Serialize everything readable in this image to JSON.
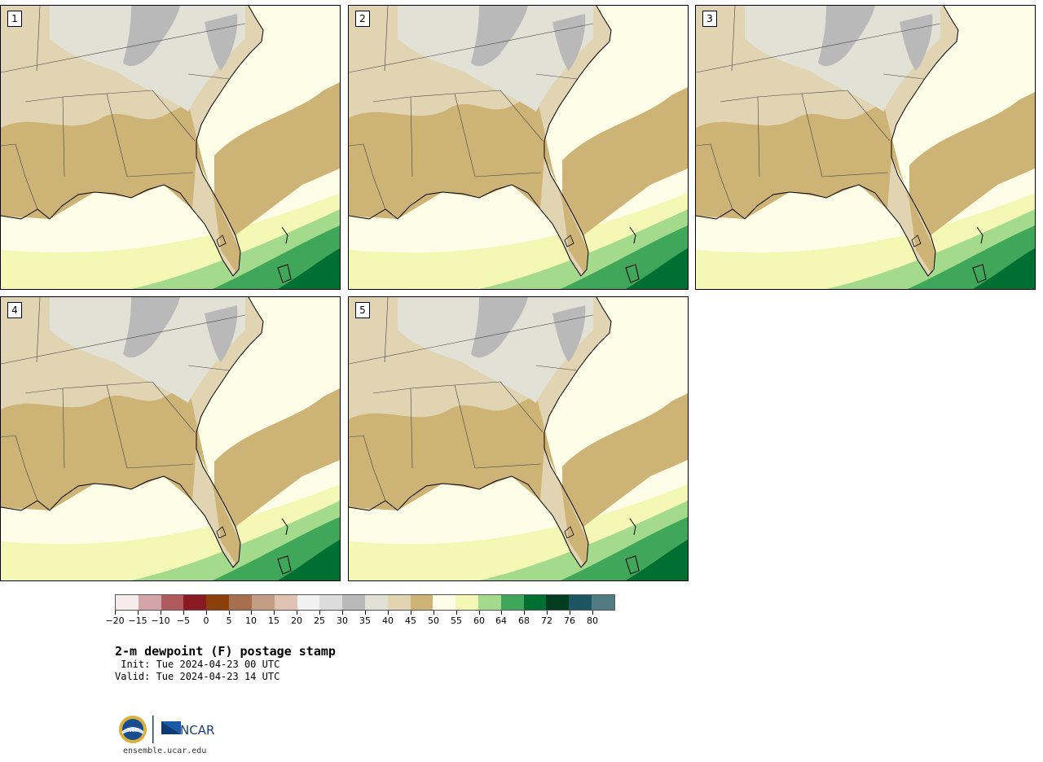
{
  "title": "2-m dewpoint (F) postage stamp",
  "init": " Init: Tue 2024-04-23 00 UTC",
  "valid": "Valid: Tue 2024-04-23 14 UTC",
  "site": "ensemble.ucar.edu",
  "logo_ncar": "NCAR",
  "logo_nsf": "NSF",
  "panels": [
    {
      "label": "1",
      "variant": 1
    },
    {
      "label": "2",
      "variant": 2
    },
    {
      "label": "3",
      "variant": 3
    },
    {
      "label": "4",
      "variant": 4
    },
    {
      "label": "5",
      "variant": 5
    }
  ],
  "colorbar": {
    "colors": [
      "#f6eceb",
      "#d4a5a8",
      "#b05a60",
      "#8a1a22",
      "#8c3f0b",
      "#a86f4e",
      "#c49d85",
      "#dfc2b2",
      "#f1f1f1",
      "#dcdcdc",
      "#b9b9ba",
      "#e2e1d6",
      "#e1d4b2",
      "#cdb375",
      "#fefde7",
      "#f4f8b4",
      "#a3da8b",
      "#3fa65a",
      "#007032",
      "#023d20",
      "#1c5662",
      "#517c83"
    ],
    "ticks": [
      "-20",
      "-15",
      "-10",
      "-5",
      "0",
      "5",
      "10",
      "15",
      "20",
      "25",
      "30",
      "35",
      "40",
      "45",
      "50",
      "55",
      "60",
      "64",
      "68",
      "72",
      "76",
      "80"
    ]
  },
  "shading_colors": {
    "gray_dark": "#b9b9ba",
    "gray_light": "#e2e1d6",
    "tan_light": "#e1d4b2",
    "tan": "#cdb375",
    "cream": "#fefde7",
    "yellow": "#f4f8b4",
    "green_light": "#a3da8b",
    "green": "#3fa65a",
    "green_dark": "#007032"
  }
}
